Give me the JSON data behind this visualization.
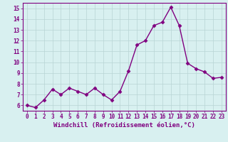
{
  "x": [
    0,
    1,
    2,
    3,
    4,
    5,
    6,
    7,
    8,
    9,
    10,
    11,
    12,
    13,
    14,
    15,
    16,
    17,
    18,
    19,
    20,
    21,
    22,
    23
  ],
  "y": [
    6.0,
    5.8,
    6.5,
    7.5,
    7.0,
    7.6,
    7.3,
    7.0,
    7.6,
    7.0,
    6.5,
    7.3,
    9.2,
    11.6,
    12.0,
    13.4,
    13.7,
    15.1,
    13.4,
    9.9,
    9.4,
    9.1,
    8.5,
    8.6
  ],
  "line_color": "#800080",
  "marker": "D",
  "markersize": 2.5,
  "linewidth": 1.0,
  "bg_color": "#d8f0f0",
  "grid_color": "#b8d4d4",
  "xlabel": "Windchill (Refroidissement éolien,°C)",
  "xlim": [
    -0.5,
    23.5
  ],
  "ylim": [
    5.5,
    15.5
  ],
  "yticks": [
    6,
    7,
    8,
    9,
    10,
    11,
    12,
    13,
    14,
    15
  ],
  "xticks": [
    0,
    1,
    2,
    3,
    4,
    5,
    6,
    7,
    8,
    9,
    10,
    11,
    12,
    13,
    14,
    15,
    16,
    17,
    18,
    19,
    20,
    21,
    22,
    23
  ],
  "tick_color": "#800080",
  "label_color": "#800080",
  "tick_fontsize": 5.5,
  "xlabel_fontsize": 6.5
}
